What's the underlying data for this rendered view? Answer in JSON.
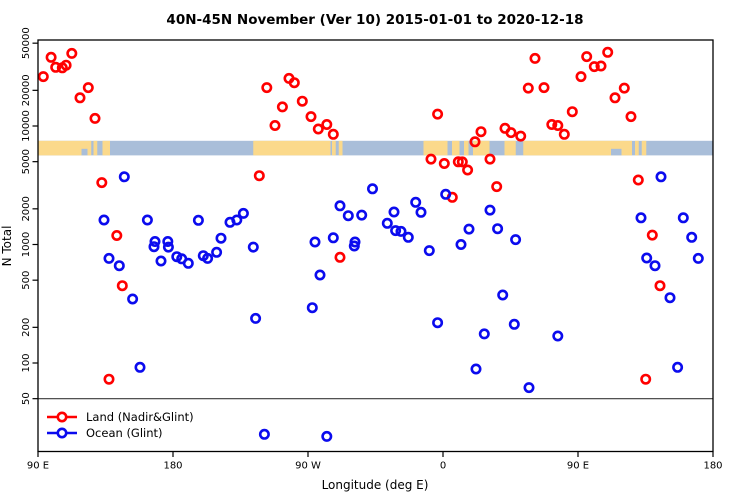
{
  "chart_data": {
    "type": "scatter",
    "title": "40N-45N November (Ver 10)   2015-01-01 to 2020-12-18",
    "xlabel": "Longitude (deg E)",
    "ylabel": "N Total",
    "y_scale": "log",
    "x_axis_note": "longitude axis wraps eastward from 90E: positions stored as 90..540 deg",
    "x_range": [
      90,
      540
    ],
    "y_range": [
      18,
      53000
    ],
    "grid": false,
    "x_ticks": [
      {
        "pos": 90,
        "label": "90 E"
      },
      {
        "pos": 180,
        "label": "180"
      },
      {
        "pos": 270,
        "label": "90 W"
      },
      {
        "pos": 360,
        "label": "0"
      },
      {
        "pos": 450,
        "label": "90 E"
      },
      {
        "pos": 540,
        "label": "180"
      }
    ],
    "y_ticks": [
      50,
      100,
      200,
      500,
      1000,
      2000,
      5000,
      10000,
      20000,
      50000
    ],
    "threshold_line": {
      "value": 50,
      "color": "#3a3a3a"
    },
    "map_strip": {
      "description": "land/ocean map band for 40N-45N latitude zone",
      "value_top": 7500,
      "value_bottom": 5650,
      "ocean_color": "#a9bed9",
      "land_color": "#fbd98b",
      "land_segments": [
        [
          90,
          125.5
        ],
        [
          127,
          129.5
        ],
        [
          133,
          138
        ],
        [
          233.5,
          285
        ],
        [
          286,
          288.5
        ],
        [
          290.5,
          293
        ],
        [
          347,
          363
        ],
        [
          366,
          371
        ],
        [
          374,
          377
        ],
        [
          380,
          391
        ],
        [
          401,
          408.5
        ],
        [
          413.5,
          486
        ],
        [
          488,
          490.5
        ],
        [
          492.5,
          495.5
        ]
      ],
      "ocean_patches_bottom_half": [
        [
          119,
          123
        ],
        [
          472,
          479
        ]
      ]
    },
    "legend": {
      "position": "bottom-left",
      "entries": [
        {
          "label": "Land (Nadir&Glint)",
          "color": "#ff0000"
        },
        {
          "label": "Ocean (Glint)",
          "color": "#0b0bee"
        }
      ]
    },
    "series": [
      {
        "name": "Land (Nadir&Glint)",
        "color": "#ff0000",
        "points": [
          [
            98.7,
            38000
          ],
          [
            112.5,
            41000
          ],
          [
            101.8,
            31300
          ],
          [
            106.2,
            31000
          ],
          [
            108.7,
            32600
          ],
          [
            93.5,
            26100
          ],
          [
            123.5,
            21100
          ],
          [
            118,
            17300
          ],
          [
            128,
            11600
          ],
          [
            132.5,
            3330
          ],
          [
            142.5,
            1190
          ],
          [
            146.2,
            449
          ],
          [
            137.3,
            73
          ],
          [
            242.5,
            21100
          ],
          [
            257.3,
            25200
          ],
          [
            260.9,
            23200
          ],
          [
            266.2,
            16200
          ],
          [
            252.9,
            14500
          ],
          [
            272,
            12000
          ],
          [
            248,
            10100
          ],
          [
            276.9,
            9440
          ],
          [
            282.5,
            10300
          ],
          [
            286.9,
            8510
          ],
          [
            237.5,
            3810
          ],
          [
            291.3,
            780
          ],
          [
            421.3,
            37200
          ],
          [
            416.9,
            20900
          ],
          [
            427.3,
            21100
          ],
          [
            356.4,
            12600
          ],
          [
            385.3,
            8950
          ],
          [
            401.3,
            9570
          ],
          [
            405.3,
            8790
          ],
          [
            411.8,
            8220
          ],
          [
            381.3,
            7360
          ],
          [
            352,
            5260
          ],
          [
            360.9,
            4830
          ],
          [
            370.2,
            4990
          ],
          [
            372.9,
            4980
          ],
          [
            376.4,
            4250
          ],
          [
            391.3,
            5260
          ],
          [
            395.8,
            3080
          ],
          [
            366.2,
            2500
          ],
          [
            455.8,
            38500
          ],
          [
            469.8,
            41900
          ],
          [
            460.9,
            31700
          ],
          [
            465.3,
            32100
          ],
          [
            452,
            26100
          ],
          [
            480.9,
            20900
          ],
          [
            474.7,
            17300
          ],
          [
            446.2,
            13200
          ],
          [
            432.5,
            10300
          ],
          [
            436.5,
            10100
          ],
          [
            485.3,
            12000
          ],
          [
            440.9,
            8510
          ],
          [
            490.2,
            3500
          ],
          [
            499.5,
            1200
          ],
          [
            504.7,
            449
          ],
          [
            495.1,
            73
          ]
        ]
      },
      {
        "name": "Ocean (Glint)",
        "color": "#0b0bee",
        "points": [
          [
            147.5,
            3730
          ],
          [
            134,
            1610
          ],
          [
            162.9,
            1610
          ],
          [
            196.9,
            1600
          ],
          [
            168,
            1060
          ],
          [
            176.5,
            1060
          ],
          [
            137.3,
            764
          ],
          [
            144.2,
            662
          ],
          [
            167.3,
            958
          ],
          [
            176.9,
            950
          ],
          [
            172,
            726
          ],
          [
            182.5,
            789
          ],
          [
            185.8,
            758
          ],
          [
            190.2,
            694
          ],
          [
            200.2,
            805
          ],
          [
            153.1,
            347
          ],
          [
            158,
            92
          ],
          [
            226.9,
            1830
          ],
          [
            222.5,
            1610
          ],
          [
            218,
            1540
          ],
          [
            212,
            1130
          ],
          [
            274.7,
            1050
          ],
          [
            286.9,
            1140
          ],
          [
            301.3,
            1050
          ],
          [
            291.3,
            2120
          ],
          [
            296.9,
            1750
          ],
          [
            305.8,
            1770
          ],
          [
            209.1,
            859
          ],
          [
            203.1,
            764
          ],
          [
            233.5,
            950
          ],
          [
            300.9,
            972
          ],
          [
            278,
            553
          ],
          [
            272.9,
            293
          ],
          [
            235.1,
            238
          ],
          [
            240.9,
            25
          ],
          [
            282.5,
            24
          ],
          [
            313,
            2950
          ],
          [
            341.8,
            2270
          ],
          [
            345.3,
            1870
          ],
          [
            327.3,
            1880
          ],
          [
            322.9,
            1510
          ],
          [
            328.4,
            1310
          ],
          [
            332,
            1290
          ],
          [
            336.9,
            1150
          ],
          [
            361.8,
            2650
          ],
          [
            391.3,
            1950
          ],
          [
            377.3,
            1350
          ],
          [
            396.4,
            1360
          ],
          [
            408.4,
            1100
          ],
          [
            372,
            1000
          ],
          [
            350.9,
            888
          ],
          [
            399.8,
            375
          ],
          [
            356.4,
            219
          ],
          [
            387.5,
            176
          ],
          [
            407.5,
            212
          ],
          [
            382,
            89
          ],
          [
            417.3,
            62
          ],
          [
            505.3,
            3730
          ],
          [
            492,
            1680
          ],
          [
            520.2,
            1680
          ],
          [
            495.8,
            769
          ],
          [
            501.3,
            662
          ],
          [
            511.3,
            356
          ],
          [
            436.5,
            169
          ],
          [
            516.4,
            92
          ],
          [
            525.8,
            1150
          ],
          [
            530.2,
            764
          ]
        ]
      }
    ]
  }
}
